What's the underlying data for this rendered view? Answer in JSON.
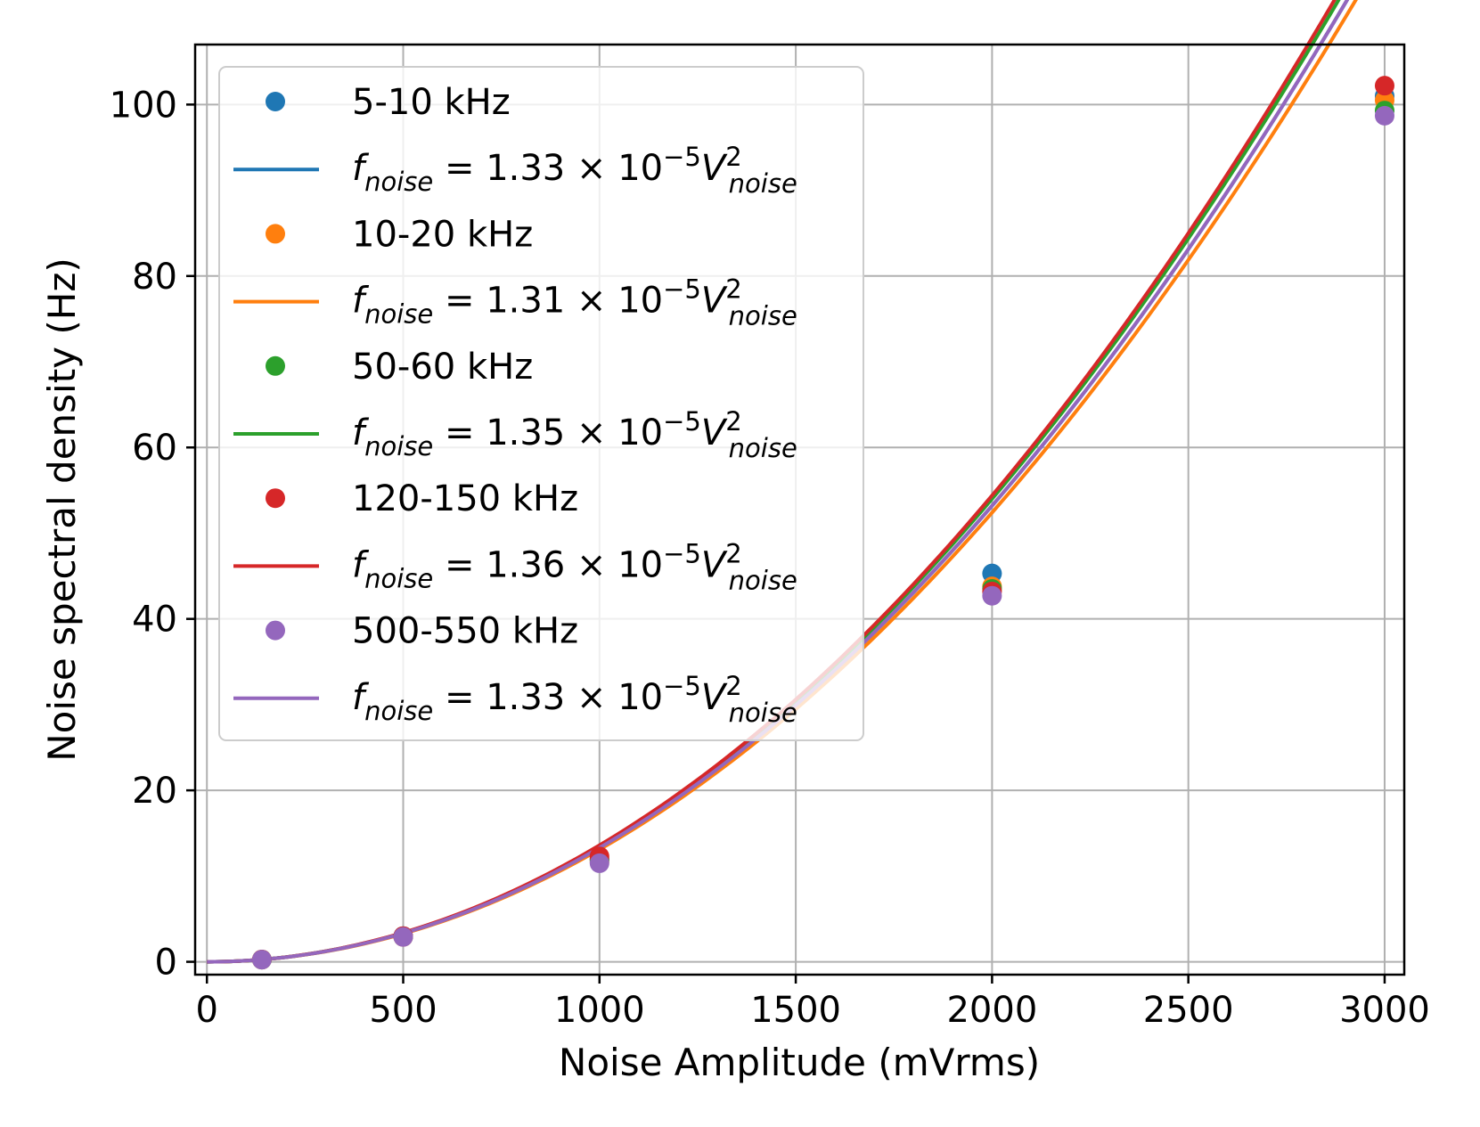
{
  "chart_data": {
    "type": "scatter",
    "xlabel": "Noise Amplitude (mVrms)",
    "ylabel": "Noise spectral density (Hz)",
    "xlim": [
      -30,
      3050
    ],
    "ylim": [
      -1.5,
      107
    ],
    "xticks": [
      0,
      500,
      1000,
      1500,
      2000,
      2500,
      3000
    ],
    "xtick_labels": [
      "0",
      "500",
      "1000",
      "1500",
      "2000",
      "2500",
      "3000"
    ],
    "yticks": [
      0,
      20,
      40,
      60,
      80,
      100
    ],
    "ytick_labels": [
      "0",
      "20",
      "40",
      "60",
      "80",
      "100"
    ],
    "grid": true,
    "legend_position": "upper-left",
    "series": [
      {
        "name": "5-10 kHz",
        "color": "#1f77b4",
        "x": [
          140,
          500,
          1000,
          2000,
          3000
        ],
        "y": [
          0.26,
          3.0,
          12.0,
          45.3,
          101.0
        ],
        "fit": {
          "coef_mantissa": "1.33",
          "coef": 1.33e-05,
          "label_lhs": "f",
          "label_sub": "noise",
          "label_mid": " = ",
          "label_times": " × 10",
          "label_exp": "−5",
          "label_var": "V",
          "label_sup": "2"
        }
      },
      {
        "name": "10-20 kHz",
        "color": "#ff7f0e",
        "x": [
          140,
          500,
          1000,
          2000,
          3000
        ],
        "y": [
          0.25,
          2.9,
          11.7,
          43.8,
          100.5
        ],
        "fit": {
          "coef_mantissa": "1.31",
          "coef": 1.31e-05,
          "label_lhs": "f",
          "label_sub": "noise",
          "label_mid": " = ",
          "label_times": " × 10",
          "label_exp": "−5",
          "label_var": "V",
          "label_sup": "2"
        }
      },
      {
        "name": "50-60 kHz",
        "color": "#2ca02c",
        "x": [
          140,
          500,
          1000,
          2000,
          3000
        ],
        "y": [
          0.26,
          2.95,
          11.9,
          43.5,
          99.3
        ],
        "fit": {
          "coef_mantissa": "1.35",
          "coef": 1.35e-05,
          "label_lhs": "f",
          "label_sub": "noise",
          "label_mid": " = ",
          "label_times": " × 10",
          "label_exp": "−5",
          "label_var": "V",
          "label_sup": "2"
        }
      },
      {
        "name": "120-150 kHz",
        "color": "#d62728",
        "x": [
          140,
          500,
          1000,
          2000,
          3000
        ],
        "y": [
          0.27,
          3.0,
          12.3,
          43.2,
          102.2
        ],
        "fit": {
          "coef_mantissa": "1.36",
          "coef": 1.36e-05,
          "label_lhs": "f",
          "label_sub": "noise",
          "label_mid": " = ",
          "label_times": " × 10",
          "label_exp": "−5",
          "label_var": "V",
          "label_sup": "2"
        }
      },
      {
        "name": "500-550 kHz",
        "color": "#9467bd",
        "x": [
          140,
          500,
          1000,
          2000,
          3000
        ],
        "y": [
          0.25,
          2.9,
          11.5,
          42.7,
          98.7
        ],
        "fit": {
          "coef_mantissa": "1.33",
          "coef": 1.33e-05,
          "label_lhs": "f",
          "label_sub": "noise",
          "label_mid": " = ",
          "label_times": " × 10",
          "label_exp": "−5",
          "label_var": "V",
          "label_sup": "2"
        }
      }
    ]
  }
}
